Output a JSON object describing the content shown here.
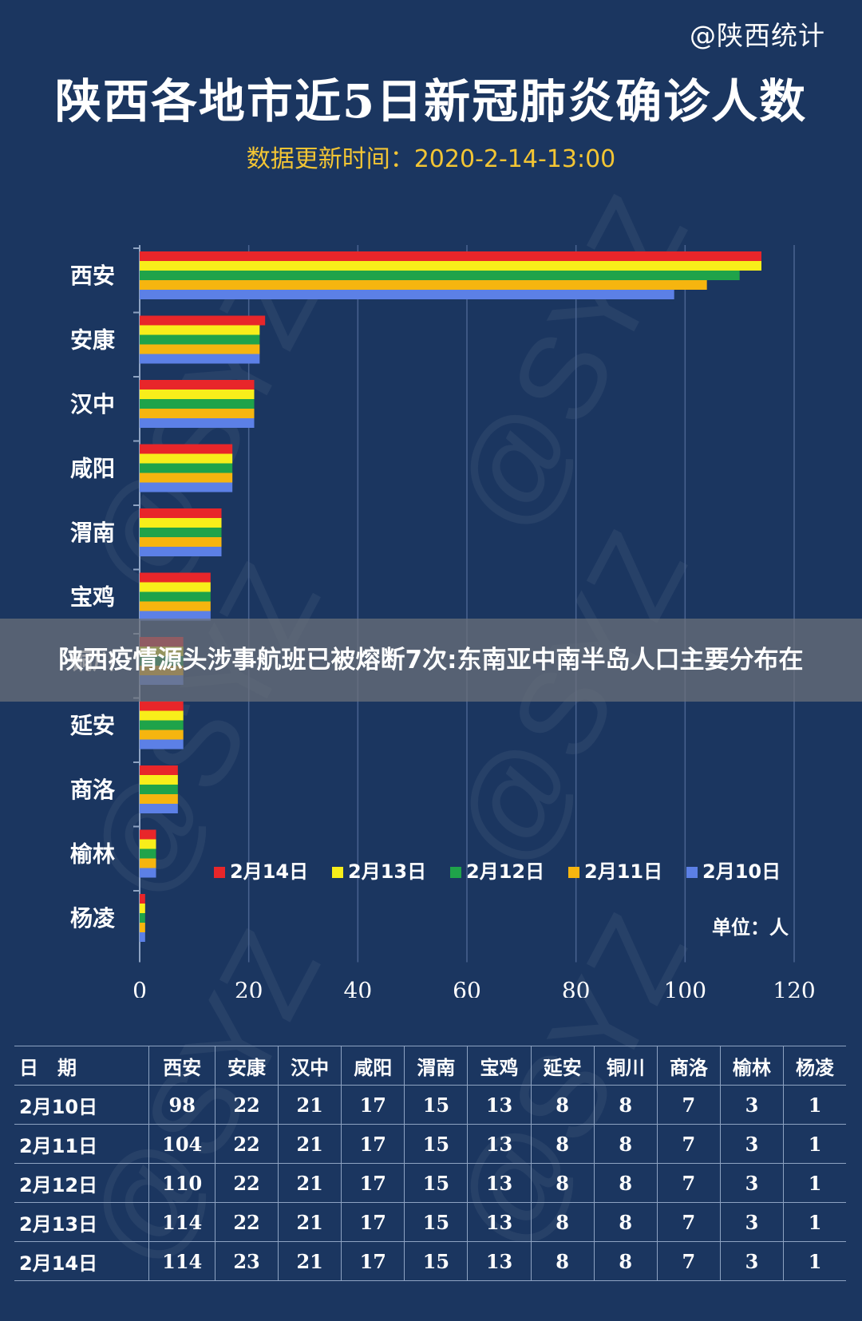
{
  "header": {
    "credit": "@陕西统计",
    "title": "陕西各地市近5日新冠肺炎确诊人数",
    "subtitle": "数据更新时间：2020-2-14-13:00"
  },
  "watermark_text": "@SYZ",
  "overlay_banner": {
    "text": "陕西疫情源头涉事航班已被熔断7次:东南亚中南半岛人口主要分布在"
  },
  "chart_data": {
    "type": "bar",
    "orientation": "horizontal",
    "categories": [
      "西安",
      "安康",
      "汉中",
      "咸阳",
      "渭南",
      "宝鸡",
      "铜川",
      "延安",
      "商洛",
      "榆林",
      "杨凌"
    ],
    "series": [
      {
        "name": "2月14日",
        "color": "#e8262a",
        "values": [
          114,
          23,
          21,
          17,
          15,
          13,
          8,
          8,
          7,
          3,
          1
        ]
      },
      {
        "name": "2月13日",
        "color": "#f8ee1a",
        "values": [
          114,
          22,
          21,
          17,
          15,
          13,
          8,
          8,
          7,
          3,
          1
        ]
      },
      {
        "name": "2月12日",
        "color": "#1fa34a",
        "values": [
          110,
          22,
          21,
          17,
          15,
          13,
          8,
          8,
          7,
          3,
          1
        ]
      },
      {
        "name": "2月11日",
        "color": "#f6b50f",
        "values": [
          104,
          22,
          21,
          17,
          15,
          13,
          8,
          8,
          7,
          3,
          1
        ]
      },
      {
        "name": "2月10日",
        "color": "#5c80e6",
        "values": [
          98,
          22,
          21,
          17,
          15,
          13,
          8,
          8,
          7,
          3,
          1
        ]
      }
    ],
    "xlim": [
      0,
      120
    ],
    "xticks": [
      0,
      20,
      40,
      60,
      80,
      100,
      120
    ],
    "grid": true,
    "legend_position": "lower-right",
    "unit_label": "单位：人"
  },
  "table": {
    "headers": [
      "日　期",
      "西安",
      "安康",
      "汉中",
      "咸阳",
      "渭南",
      "宝鸡",
      "延安",
      "铜川",
      "商洛",
      "榆林",
      "杨凌"
    ],
    "rows": [
      [
        "2月10日",
        "98",
        "22",
        "21",
        "17",
        "15",
        "13",
        "8",
        "8",
        "7",
        "3",
        "1"
      ],
      [
        "2月11日",
        "104",
        "22",
        "21",
        "17",
        "15",
        "13",
        "8",
        "8",
        "7",
        "3",
        "1"
      ],
      [
        "2月12日",
        "110",
        "22",
        "21",
        "17",
        "15",
        "13",
        "8",
        "8",
        "7",
        "3",
        "1"
      ],
      [
        "2月13日",
        "114",
        "22",
        "21",
        "17",
        "15",
        "13",
        "8",
        "8",
        "7",
        "3",
        "1"
      ],
      [
        "2月14日",
        "114",
        "23",
        "21",
        "17",
        "15",
        "13",
        "8",
        "8",
        "7",
        "3",
        "1"
      ]
    ]
  }
}
